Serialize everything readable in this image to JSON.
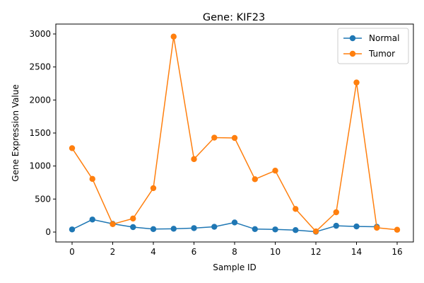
{
  "chart_data": {
    "type": "line",
    "title": "Gene: KIF23",
    "xlabel": "Sample ID",
    "ylabel": "Gene Expression Value",
    "xlim": [
      -0.8,
      16.8
    ],
    "ylim": [
      -150,
      3150
    ],
    "xticks": [
      0,
      2,
      4,
      6,
      8,
      10,
      12,
      14,
      16
    ],
    "yticks": [
      0,
      500,
      1000,
      1500,
      2000,
      2500,
      3000
    ],
    "grid": false,
    "legend_position": "top-right",
    "series": [
      {
        "name": "Normal",
        "color": "#1f77b4",
        "x": [
          0,
          1,
          2,
          3,
          4,
          5,
          6,
          7,
          8,
          9,
          10,
          11,
          12,
          13,
          14,
          15
        ],
        "values": [
          40,
          190,
          125,
          75,
          45,
          50,
          60,
          80,
          145,
          45,
          40,
          30,
          5,
          95,
          85,
          80
        ]
      },
      {
        "name": "Tumor",
        "color": "#ff7f0e",
        "x": [
          0,
          1,
          2,
          3,
          4,
          5,
          6,
          7,
          8,
          9,
          10,
          11,
          12,
          13,
          14,
          15,
          16
        ],
        "values": [
          1270,
          805,
          120,
          205,
          665,
          2960,
          1105,
          1430,
          1425,
          800,
          930,
          350,
          10,
          300,
          2265,
          65,
          35
        ]
      }
    ]
  }
}
